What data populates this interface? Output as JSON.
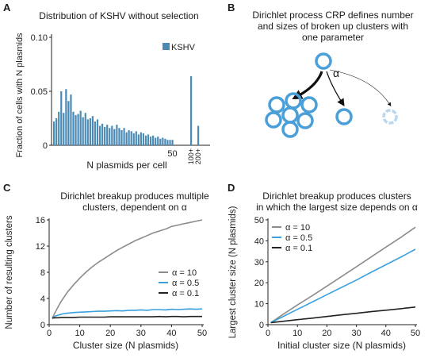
{
  "panels": {
    "a": {
      "letter": "A",
      "chart_data": {
        "type": "bar",
        "title": "Distribution of KSHV without selection",
        "xlabel": "N plasmids per cell",
        "ylabel": "Fraction of cells with N plasmids",
        "legend": [
          "KSHV"
        ],
        "legend_position": "top-right",
        "ylim": [
          0,
          0.1
        ],
        "yticks": [
          "0",
          "0.05",
          "0.10"
        ],
        "x_tick_labels": [
          "50",
          "100+",
          "200+"
        ],
        "bar_color": "#4a8ab5",
        "grid": false,
        "categories": [
          1,
          2,
          3,
          4,
          5,
          6,
          7,
          8,
          9,
          10,
          11,
          12,
          13,
          14,
          15,
          16,
          17,
          18,
          19,
          20,
          21,
          22,
          23,
          24,
          25,
          26,
          27,
          28,
          29,
          30,
          31,
          32,
          33,
          34,
          35,
          36,
          37,
          38,
          39,
          40,
          41,
          42,
          43,
          44,
          45,
          46,
          47,
          48,
          49,
          50,
          "100+",
          "200+"
        ],
        "values": [
          0.022,
          0.025,
          0.031,
          0.05,
          0.03,
          0.052,
          0.041,
          0.047,
          0.031,
          0.028,
          0.029,
          0.032,
          0.026,
          0.03,
          0.024,
          0.025,
          0.027,
          0.022,
          0.024,
          0.018,
          0.02,
          0.017,
          0.019,
          0.016,
          0.018,
          0.015,
          0.019,
          0.016,
          0.014,
          0.016,
          0.012,
          0.014,
          0.013,
          0.011,
          0.013,
          0.01,
          0.012,
          0.011,
          0.009,
          0.01,
          0.008,
          0.009,
          0.007,
          0.008,
          0.006,
          0.007,
          0.006,
          0.005,
          0.005,
          0.005,
          0.064,
          0.018
        ]
      }
    },
    "b": {
      "letter": "B",
      "title_lines": [
        "Dirichlet process CRP defines number",
        "and sizes of broken up clusters with",
        "one parameter"
      ],
      "alpha_label": "α",
      "circle_color": "#4a9fd8",
      "faded_circle_color": "#b9d7ee"
    },
    "c": {
      "letter": "C",
      "chart_data": {
        "type": "line",
        "title_lines": [
          "Dirichlet breakup produces multiple",
          "clusters, dependent on α"
        ],
        "xlabel": "Cluster size (N plasmids)",
        "ylabel": "Number of resulting clusters",
        "xlim": [
          0,
          50
        ],
        "ylim": [
          0,
          16
        ],
        "xticks": [
          "0",
          "10",
          "20",
          "30",
          "40",
          "50"
        ],
        "yticks": [
          "0",
          "4",
          "8",
          "12",
          "16"
        ],
        "legend_position": "center-right",
        "grid": false,
        "x": [
          1,
          2,
          3,
          4,
          5,
          6,
          8,
          10,
          12,
          14,
          16,
          18,
          20,
          22,
          24,
          26,
          28,
          30,
          32,
          34,
          36,
          38,
          40,
          42,
          44,
          46,
          48,
          50
        ],
        "series": [
          {
            "name": "α = 10",
            "color": "#8c8c8c",
            "values": [
              1.0,
              1.9,
              2.8,
              3.6,
              4.3,
              5.0,
              6.1,
              7.1,
              8.0,
              8.8,
              9.5,
              10.1,
              10.7,
              11.3,
              11.8,
              12.3,
              12.8,
              13.2,
              13.6,
              14.0,
              14.3,
              14.6,
              15.0,
              15.2,
              15.4,
              15.6,
              15.8,
              16.0
            ]
          },
          {
            "name": "α = 0.5",
            "color": "#3aa0de",
            "values": [
              1.0,
              1.3,
              1.45,
              1.6,
              1.7,
              1.75,
              1.85,
              1.9,
              1.95,
              2.0,
              2.05,
              2.05,
              2.1,
              2.15,
              2.1,
              2.2,
              2.2,
              2.25,
              2.2,
              2.3,
              2.3,
              2.25,
              2.35,
              2.3,
              2.35,
              2.4,
              2.35,
              2.4
            ]
          },
          {
            "name": "α = 0.1",
            "color": "#222222",
            "values": [
              1.0,
              1.05,
              1.05,
              1.1,
              1.1,
              1.1,
              1.1,
              1.15,
              1.15,
              1.15,
              1.15,
              1.15,
              1.2,
              1.2,
              1.2,
              1.2,
              1.2,
              1.2,
              1.2,
              1.2,
              1.25,
              1.2,
              1.25,
              1.25,
              1.2,
              1.25,
              1.25,
              1.25
            ]
          }
        ]
      }
    },
    "d": {
      "letter": "D",
      "chart_data": {
        "type": "line",
        "title_lines": [
          "Dirichlet breakup produces clusters",
          "in which the largest size depends on α"
        ],
        "xlabel": "Initial cluster size (N plasmids)",
        "ylabel": "Largest cluster size (N plasmids)",
        "xlim": [
          0,
          50
        ],
        "ylim": [
          0,
          50
        ],
        "xticks": [
          "0",
          "10",
          "20",
          "30",
          "40",
          "50"
        ],
        "yticks": [
          "0",
          "10",
          "20",
          "30",
          "40",
          "50"
        ],
        "legend_position": "top-left",
        "grid": false,
        "x": [
          1,
          5,
          10,
          15,
          20,
          25,
          30,
          35,
          40,
          45,
          50
        ],
        "series": [
          {
            "name": "α = 10",
            "color": "#8c8c8c",
            "values": [
              1.0,
              4.8,
              9.4,
              13.8,
              18.4,
              23.0,
              27.6,
              32.3,
              37.0,
              41.6,
              46.5
            ]
          },
          {
            "name": "α = 0.5",
            "color": "#3aa0de",
            "values": [
              1.0,
              3.8,
              7.3,
              10.8,
              14.3,
              17.8,
              21.3,
              25.0,
              28.6,
              32.2,
              36.0
            ]
          },
          {
            "name": "α = 0.1",
            "color": "#222222",
            "values": [
              1.0,
              1.6,
              2.4,
              3.1,
              3.9,
              4.7,
              5.4,
              6.2,
              6.9,
              7.6,
              8.4
            ]
          }
        ]
      }
    }
  }
}
